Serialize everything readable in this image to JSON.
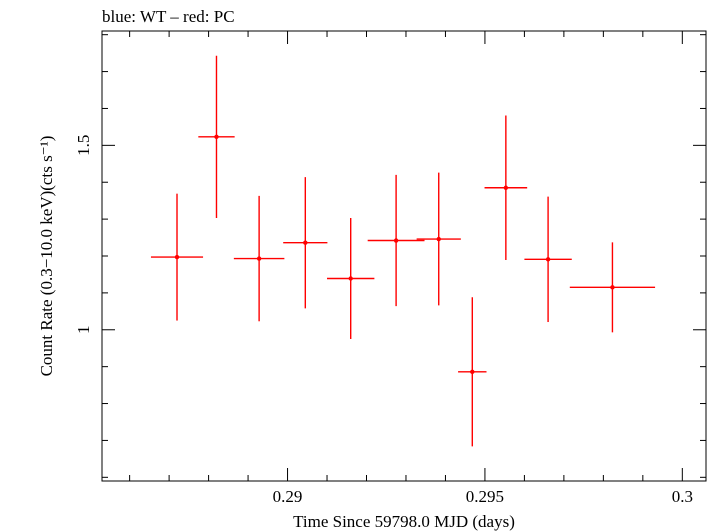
{
  "caption": "blue: WT – red: PC",
  "chart_data": {
    "type": "scatter",
    "style": "error-bar points, no connecting lines",
    "xlabel": "Time Since 59798.0 MJD (days)",
    "ylabel": "Count Rate (0.3−10.0 keV)(cts s⁻¹)",
    "xlim": [
      0.2853,
      0.3006
    ],
    "ylim": [
      0.59,
      1.81
    ],
    "xticks": [
      0.29,
      0.295,
      0.3
    ],
    "xtick_labels": [
      "0.29",
      "0.295",
      "0.3"
    ],
    "xminor": [
      0.286,
      0.287,
      0.288,
      0.289,
      0.291,
      0.292,
      0.293,
      0.294,
      0.296,
      0.297,
      0.298,
      0.299
    ],
    "yticks": [
      1.0,
      1.5
    ],
    "ytick_labels": [
      "1",
      "1.5"
    ],
    "yminor": [
      0.6,
      0.7,
      0.8,
      0.9,
      1.1,
      1.2,
      1.3,
      1.4,
      1.6,
      1.7,
      1.8
    ],
    "grid": false,
    "series": [
      {
        "name": "PC",
        "color": "#ff0000",
        "points": [
          {
            "x": 0.2872,
            "xerr": 0.00066,
            "y": 1.197,
            "yerr": 0.172
          },
          {
            "x": 0.2882,
            "xerr": 0.00046,
            "y": 1.523,
            "yerr": 0.22
          },
          {
            "x": 0.28928,
            "xerr": 0.00064,
            "y": 1.193,
            "yerr": 0.17
          },
          {
            "x": 0.29045,
            "xerr": 0.00056,
            "y": 1.236,
            "yerr": 0.178
          },
          {
            "x": 0.2916,
            "xerr": 0.0006,
            "y": 1.139,
            "yerr": 0.164
          },
          {
            "x": 0.29275,
            "xerr": 0.00072,
            "y": 1.242,
            "yerr": 0.178
          },
          {
            "x": 0.29383,
            "xerr": 0.00056,
            "y": 1.246,
            "yerr": 0.18
          },
          {
            "x": 0.29468,
            "xerr": 0.00036,
            "y": 0.886,
            "yerr": 0.202
          },
          {
            "x": 0.29553,
            "xerr": 0.00054,
            "y": 1.385,
            "yerr": 0.196
          },
          {
            "x": 0.2966,
            "xerr": 0.0006,
            "y": 1.191,
            "yerr": 0.17
          },
          {
            "x": 0.29823,
            "xerr": 0.00108,
            "y": 1.115,
            "yerr": 0.122
          }
        ]
      }
    ]
  }
}
